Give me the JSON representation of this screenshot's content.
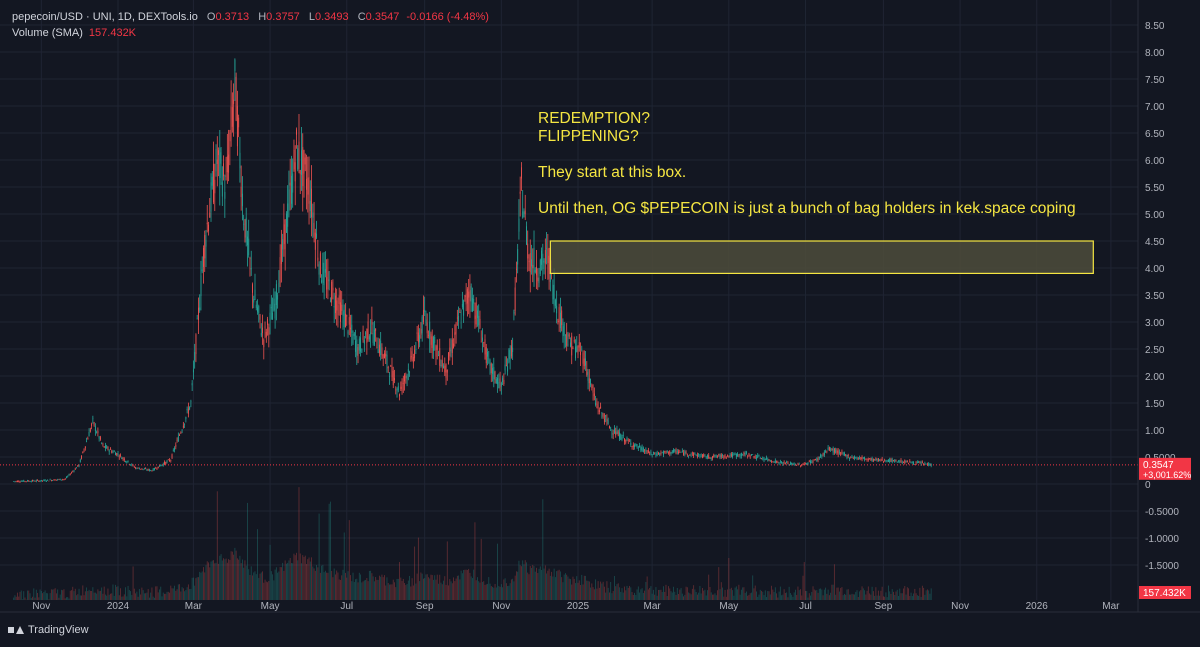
{
  "header": {
    "symbol": "pepecoin/USD · UNI, 1D, DEXTools.io",
    "open_label": "O",
    "open": "0.3713",
    "high_label": "H",
    "high": "0.3757",
    "low_label": "L",
    "low": "0.3493",
    "close_label": "C",
    "close": "0.3547",
    "change": "-0.0166 (-4.48%)",
    "volume_label": "Volume (SMA)",
    "volume_value": "157.432K"
  },
  "annotation": {
    "line1": "REDEMPTION?",
    "line2": "FLIPPENING?",
    "line3": "They start at this box.",
    "line4": "Until then, OG $PEPECOIN is just a bunch of bag holders in kek.space coping"
  },
  "footer": {
    "brand": "TradingView"
  },
  "chart_data": {
    "type": "candlestick",
    "title": "",
    "xlabel": "",
    "ylabel": "",
    "ylim": [
      -1.5,
      8.6
    ],
    "grid": true,
    "y_ticks": [
      "8.50",
      "8.00",
      "7.50",
      "7.00",
      "6.50",
      "6.00",
      "5.50",
      "5.00",
      "4.50",
      "4.00",
      "3.50",
      "3.00",
      "2.50",
      "2.00",
      "1.50",
      "1.00",
      "0.5000",
      "0",
      "-0.5000",
      "-1.0000",
      "-1.5000"
    ],
    "x_ticks": [
      "Nov",
      "2024",
      "Mar",
      "May",
      "Jul",
      "Sep",
      "Nov",
      "2025",
      "Mar",
      "May",
      "Jul",
      "Sep",
      "Nov",
      "2026",
      "Mar"
    ],
    "price_path": [
      [
        "2023-10-10",
        0.05
      ],
      [
        "2023-11-01",
        0.06
      ],
      [
        "2023-11-20",
        0.09
      ],
      [
        "2023-12-01",
        0.35
      ],
      [
        "2023-12-12",
        1.15
      ],
      [
        "2023-12-20",
        0.7
      ],
      [
        "2024-01-01",
        0.55
      ],
      [
        "2024-01-15",
        0.3
      ],
      [
        "2024-01-28",
        0.25
      ],
      [
        "2024-02-12",
        0.45
      ],
      [
        "2024-02-28",
        1.5
      ],
      [
        "2024-03-10",
        4.5
      ],
      [
        "2024-03-20",
        6.0
      ],
      [
        "2024-03-27",
        5.5
      ],
      [
        "2024-04-03",
        7.4
      ],
      [
        "2024-04-10",
        5.0
      ],
      [
        "2024-04-18",
        3.5
      ],
      [
        "2024-04-26",
        2.7
      ],
      [
        "2024-05-05",
        3.3
      ],
      [
        "2024-05-15",
        5.0
      ],
      [
        "2024-05-22",
        6.2
      ],
      [
        "2024-06-01",
        5.5
      ],
      [
        "2024-06-10",
        4.0
      ],
      [
        "2024-06-20",
        3.5
      ],
      [
        "2024-07-01",
        3.0
      ],
      [
        "2024-07-10",
        2.5
      ],
      [
        "2024-07-20",
        2.9
      ],
      [
        "2024-08-01",
        2.3
      ],
      [
        "2024-08-12",
        1.7
      ],
      [
        "2024-08-22",
        2.3
      ],
      [
        "2024-09-01",
        3.1
      ],
      [
        "2024-09-10",
        2.5
      ],
      [
        "2024-09-18",
        2.1
      ],
      [
        "2024-09-28",
        3.0
      ],
      [
        "2024-10-07",
        3.6
      ],
      [
        "2024-10-14",
        3.0
      ],
      [
        "2024-10-22",
        2.2
      ],
      [
        "2024-11-01",
        1.8
      ],
      [
        "2024-11-10",
        2.6
      ],
      [
        "2024-11-17",
        5.5
      ],
      [
        "2024-11-23",
        4.2
      ],
      [
        "2024-12-01",
        4.0
      ],
      [
        "2024-12-08",
        4.2
      ],
      [
        "2024-12-15",
        3.3
      ],
      [
        "2024-12-25",
        2.6
      ],
      [
        "2025-01-05",
        2.4
      ],
      [
        "2025-01-15",
        1.5
      ],
      [
        "2025-01-28",
        1.0
      ],
      [
        "2025-02-12",
        0.75
      ],
      [
        "2025-03-01",
        0.55
      ],
      [
        "2025-03-20",
        0.6
      ],
      [
        "2025-04-15",
        0.5
      ],
      [
        "2025-05-15",
        0.55
      ],
      [
        "2025-06-10",
        0.4
      ],
      [
        "2025-06-28",
        0.35
      ],
      [
        "2025-07-10",
        0.45
      ],
      [
        "2025-07-20",
        0.65
      ],
      [
        "2025-08-05",
        0.5
      ],
      [
        "2025-08-25",
        0.45
      ],
      [
        "2025-09-15",
        0.42
      ],
      [
        "2025-10-01",
        0.38
      ],
      [
        "2025-10-10",
        0.3547
      ]
    ],
    "volume_sma": "157.432K",
    "last_price": "0.3547",
    "last_price_change": "+3,001.62%",
    "box": {
      "start": "2024-12-10",
      "end": "2026-02-15",
      "low": 3.9,
      "high": 4.5
    },
    "colors": {
      "up": "#26a69a",
      "down": "#ef5350",
      "background": "#131722",
      "grid": "#1f2433",
      "annotation": "#f5e642",
      "box_fill": "#4e4c3b",
      "last_price": "#f23645"
    }
  }
}
